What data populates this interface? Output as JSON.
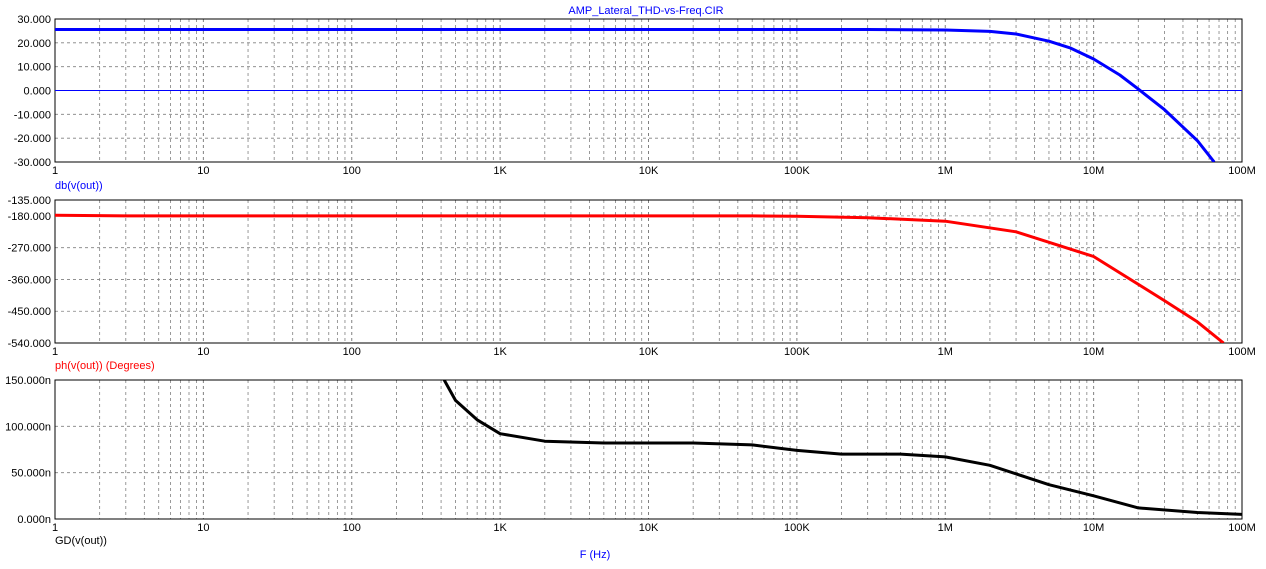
{
  "title": "AMP_Lateral_THD-vs-Freq.CIR",
  "x_axis_label": "F (Hz)",
  "colors": {
    "title": "#0000ff",
    "dB": "#0000ff",
    "phase": "#ff0000",
    "gd": "#000000",
    "grid": "#808080",
    "background": "#ffffff"
  },
  "chart_data": [
    {
      "type": "line",
      "name": "dB",
      "ylabel": "db(v(out))",
      "xscale": "log",
      "xlim": [
        1,
        100000000
      ],
      "ylim": [
        -30,
        30
      ],
      "yticks": [
        "30.000",
        "20.000",
        "10.000",
        "0.000",
        "-10.000",
        "-20.000",
        "-30.000"
      ],
      "ytick_values": [
        30,
        20,
        10,
        0,
        -10,
        -20,
        -30
      ],
      "xticks": [
        "1",
        "10",
        "100",
        "1K",
        "10K",
        "100K",
        "1M",
        "10M",
        "100M"
      ],
      "grid": true,
      "series": [
        {
          "name": "db(v(out))",
          "x": [
            1,
            10,
            100,
            1000,
            10000,
            100000,
            300000,
            1000000,
            2000000,
            3000000,
            5000000,
            7000000,
            10000000,
            15000000,
            20000000,
            30000000,
            50000000,
            65000000
          ],
          "y": [
            25.6,
            25.6,
            25.6,
            25.6,
            25.6,
            25.6,
            25.6,
            25.4,
            24.8,
            23.7,
            20.7,
            17.8,
            13.2,
            6.5,
            0.6,
            -8,
            -21,
            -30
          ]
        },
        {
          "name": "0 dB reference",
          "x": [
            1,
            100000000
          ],
          "y": [
            0,
            0
          ]
        }
      ]
    },
    {
      "type": "line",
      "name": "phase",
      "ylabel": "ph(v(out)) (Degrees)",
      "xscale": "log",
      "xlim": [
        1,
        100000000
      ],
      "ylim": [
        -540,
        -135
      ],
      "yticks": [
        "-135.000",
        "-180.000",
        "-270.000",
        "-360.000",
        "-450.000",
        "-540.000"
      ],
      "ytick_values": [
        -135,
        -180,
        -270,
        -360,
        -450,
        -540
      ],
      "xticks": [
        "1",
        "10",
        "100",
        "1K",
        "10K",
        "100K",
        "1M",
        "10M",
        "100M"
      ],
      "grid": true,
      "series": [
        {
          "name": "ph(v(out))",
          "x": [
            1,
            3,
            10,
            100,
            1000,
            10000,
            50000,
            100000,
            300000,
            1000000,
            3000000,
            10000000,
            30000000,
            50000000,
            75000000
          ],
          "y": [
            -178,
            -180,
            -180,
            -180,
            -180,
            -180,
            -180,
            -181,
            -185,
            -195,
            -225,
            -295,
            -420,
            -480,
            -540
          ]
        }
      ]
    },
    {
      "type": "line",
      "name": "group-delay",
      "ylabel": "GD(v(out))",
      "xscale": "log",
      "xlim": [
        1,
        100000000
      ],
      "ylim": [
        0,
        150
      ],
      "yticks": [
        "150.000n",
        "100.000n",
        "50.000n",
        "0.000n"
      ],
      "ytick_values": [
        150,
        100,
        50,
        0
      ],
      "yunit": "ns",
      "xticks": [
        "1",
        "10",
        "100",
        "1K",
        "10K",
        "100K",
        "1M",
        "10M",
        "100M"
      ],
      "grid": true,
      "series": [
        {
          "name": "GD(v(out))",
          "x": [
            420,
            500,
            700,
            1000,
            2000,
            5000,
            20000,
            50000,
            100000,
            200000,
            500000,
            1000000,
            2000000,
            5000000,
            10000000,
            20000000,
            50000000,
            100000000
          ],
          "y": [
            150,
            128,
            107,
            92,
            84,
            82,
            82,
            80,
            74,
            70,
            70,
            67,
            58,
            37,
            25,
            12,
            7,
            5
          ]
        }
      ]
    }
  ]
}
